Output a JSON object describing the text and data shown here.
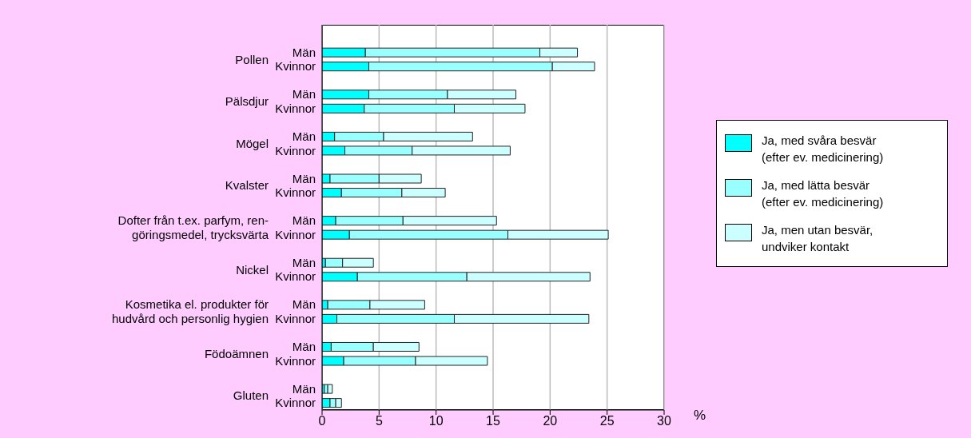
{
  "chart_data": {
    "type": "bar",
    "orientation": "horizontal",
    "stacked": true,
    "categories": [
      "Män",
      "Kvinnor",
      null,
      "Män",
      "Kvinnor",
      null,
      "Män",
      "Kvinnor",
      null,
      "Män",
      "Kvinnor",
      null,
      "Män",
      "Kvinnor",
      null,
      "Män",
      "Kvinnor",
      null,
      "Män",
      "Kvinnor",
      null,
      "Män",
      "Kvinnor",
      null,
      "Män",
      "Kvinnor"
    ],
    "annotations": [
      "Pollen",
      "Pälsdjur",
      "Mögel",
      "Kvalster",
      "Dofter från t.ex. parfym, ren-\ngöringsmedel, trycksvärta",
      "Nickel",
      "Kosmetika el. produkter för\nhudvård och personlig hygien",
      "Födoämnen",
      "Gluten"
    ],
    "series": [
      {
        "name": "Ja, med svåra besvär\n(efter ev. medicinering)",
        "color": "#00ffff",
        "values": [
          3.8,
          4.1,
          null,
          4.1,
          3.7,
          null,
          1.1,
          2.0,
          null,
          0.7,
          1.7,
          null,
          1.2,
          2.4,
          null,
          0.3,
          3.1,
          null,
          0.5,
          1.3,
          null,
          0.8,
          1.9,
          null,
          0.2,
          0.7
        ]
      },
      {
        "name": "Ja, med lätta besvär\n(efter ev. medicinering)",
        "color": "#99ffff",
        "values": [
          15.3,
          16.1,
          null,
          6.9,
          7.9,
          null,
          4.3,
          5.9,
          null,
          4.3,
          5.3,
          null,
          5.9,
          13.9,
          null,
          1.5,
          9.6,
          null,
          3.7,
          10.3,
          null,
          3.7,
          6.3,
          null,
          0.3,
          0.5
        ]
      },
      {
        "name": "Ja, men utan besvär,\nundviker kontakt",
        "color": "#ccffff",
        "values": [
          3.3,
          3.7,
          null,
          6.0,
          6.2,
          null,
          7.8,
          8.6,
          null,
          3.7,
          3.8,
          null,
          8.2,
          8.8,
          null,
          2.7,
          10.8,
          null,
          4.8,
          11.8,
          null,
          4.0,
          6.3,
          null,
          0.4,
          0.5
        ]
      }
    ],
    "xlabel": "%",
    "xlim": [
      0,
      30
    ],
    "xticks": [
      0,
      5,
      10,
      15,
      20,
      25,
      30
    ],
    "grid": "x",
    "legend": "right"
  }
}
